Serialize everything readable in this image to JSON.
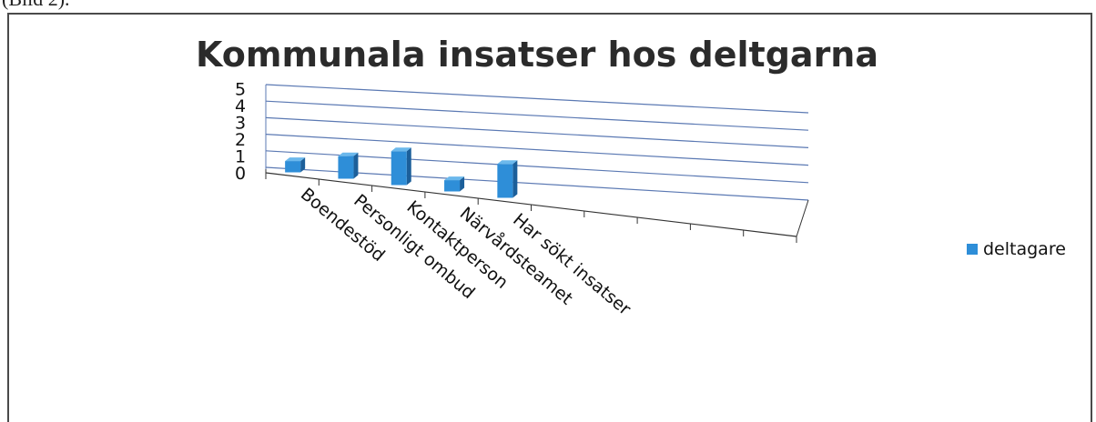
{
  "page": {
    "caption_fragment": "(Bild 2)."
  },
  "chart_data": {
    "type": "bar",
    "title": "Kommunala insatser hos deltgarna",
    "categories": [
      "Boendestöd",
      "Personligt ombud",
      "Kontaktperson",
      "Närvårdsteamet",
      "Har sökt insatser"
    ],
    "series": [
      {
        "name": "deltagare",
        "values": [
          1,
          2,
          3,
          1,
          3
        ]
      }
    ],
    "y_ticks": [
      "0",
      "1",
      "2",
      "3",
      "4",
      "5"
    ],
    "ylim": [
      0,
      5
    ],
    "grid": true,
    "legend_position": "right",
    "colors": {
      "bar": "#2e8ed8",
      "bar_dark": "#1c5f9a",
      "bar_top": "#6bb8ec",
      "grid": "#5b79b3"
    }
  }
}
